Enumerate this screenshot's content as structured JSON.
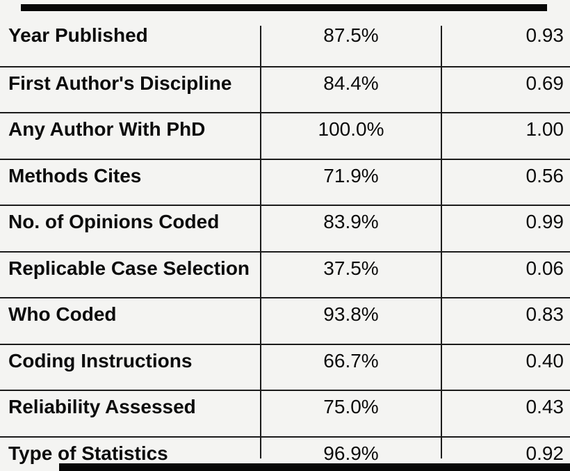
{
  "page": {
    "background_color": "#f4f4f2",
    "rule_color": "#1b1b1b",
    "text_color": "#0c0c0c",
    "crop_bar_color": "#070707"
  },
  "table": {
    "rows": [
      {
        "label": "Year Published",
        "pct": "87.5%",
        "val": "0.93"
      },
      {
        "label": "First Author's Discipline",
        "pct": "84.4%",
        "val": "0.69"
      },
      {
        "label": "Any Author With PhD",
        "pct": "100.0%",
        "val": "1.00"
      },
      {
        "label": "Methods Cites",
        "pct": "71.9%",
        "val": "0.56"
      },
      {
        "label": "No. of Opinions Coded",
        "pct": "83.9%",
        "val": "0.99"
      },
      {
        "label": "Replicable Case Selection",
        "pct": "37.5%",
        "val": "0.06"
      },
      {
        "label": "Who Coded",
        "pct": "93.8%",
        "val": "0.83"
      },
      {
        "label": "Coding Instructions",
        "pct": "66.7%",
        "val": "0.40"
      },
      {
        "label": "Reliability Assessed",
        "pct": "75.0%",
        "val": "0.43"
      },
      {
        "label": "Type of Statistics",
        "pct": "96.9%",
        "val": "0.92"
      }
    ]
  }
}
